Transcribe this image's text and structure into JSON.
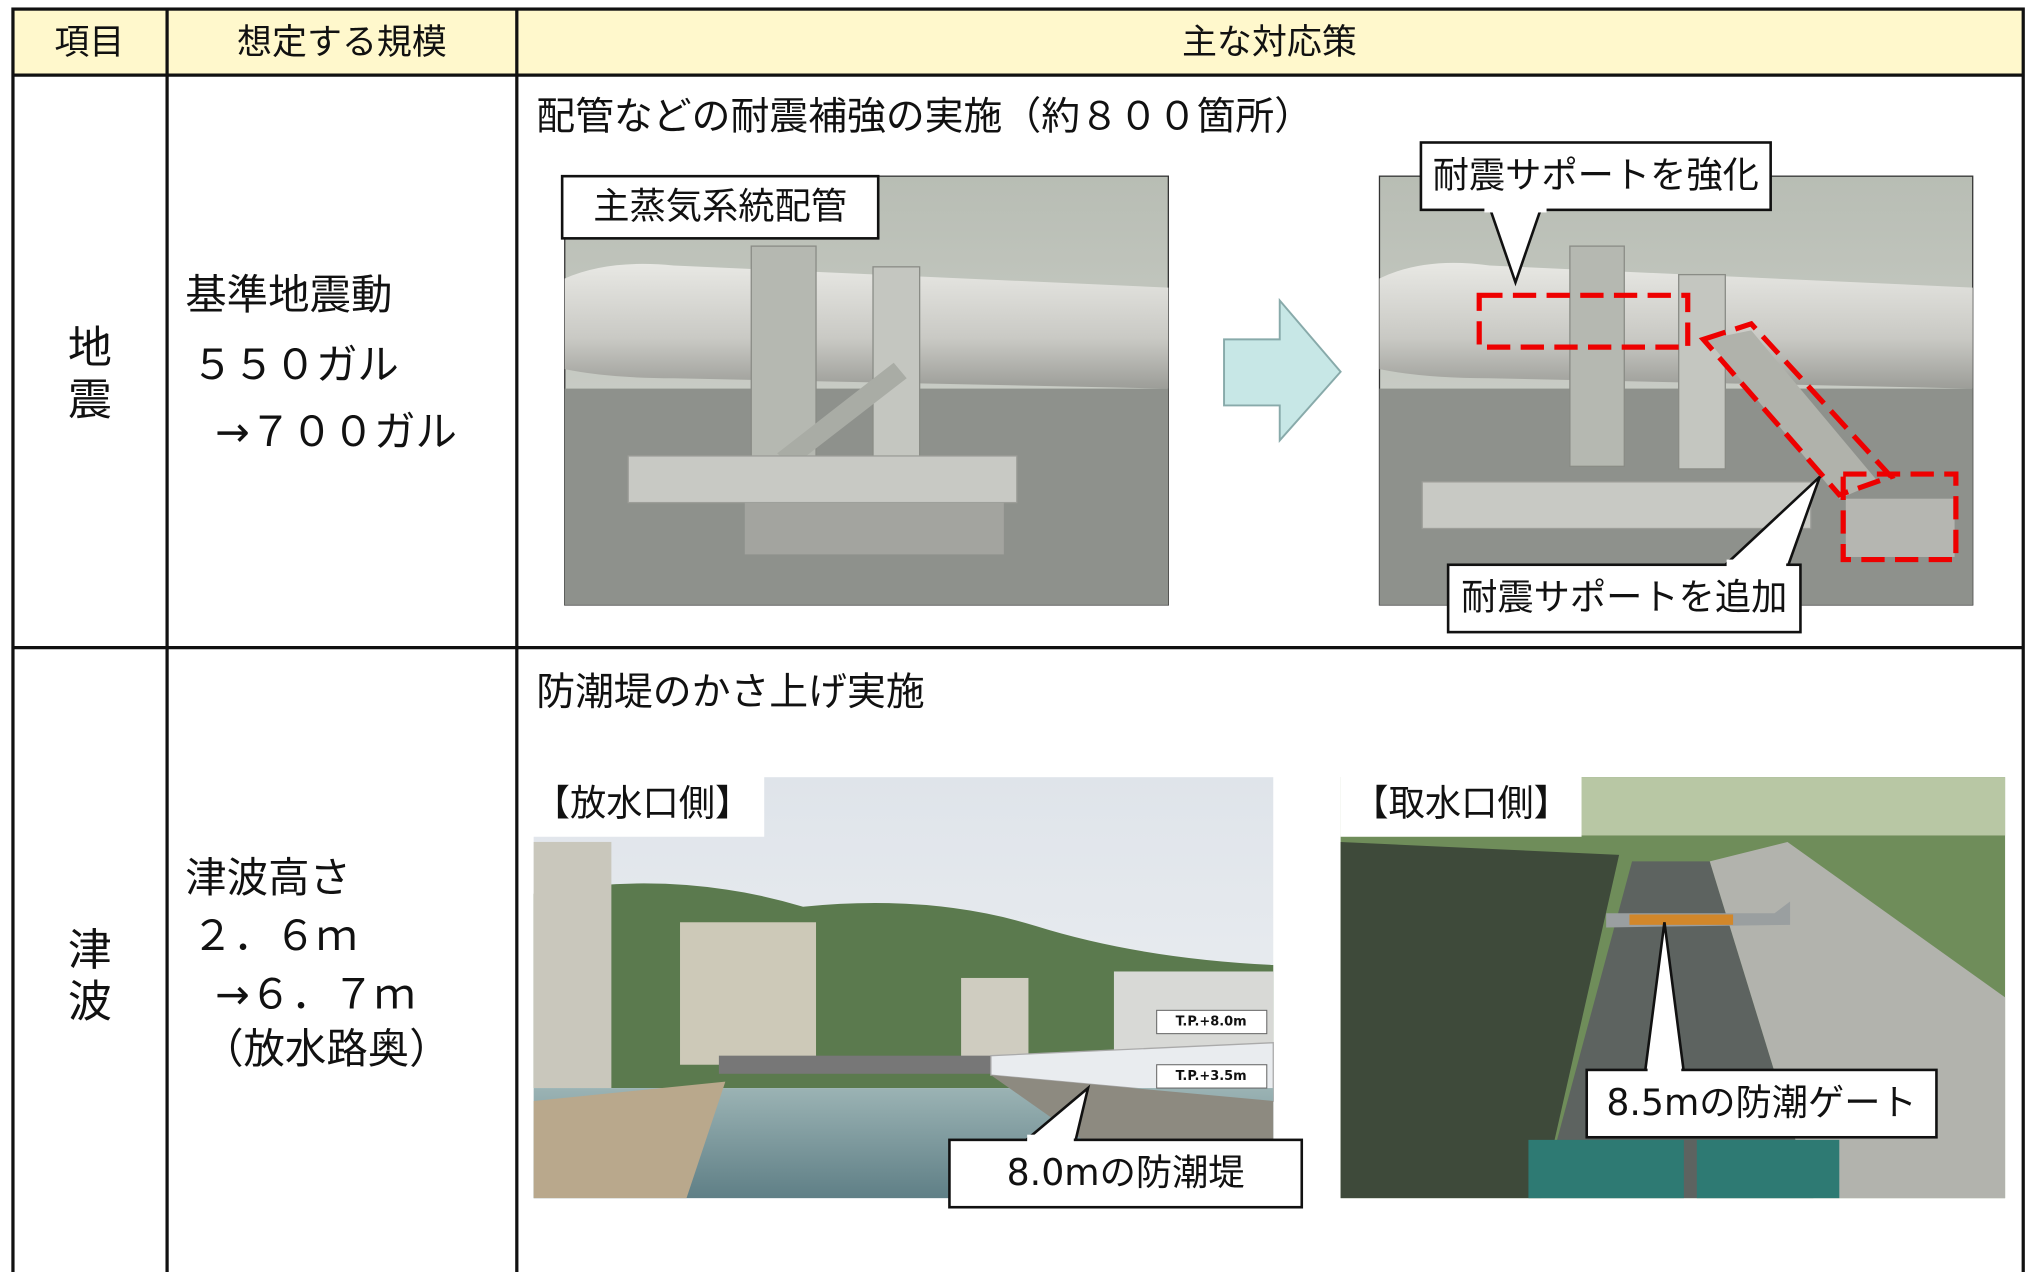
{
  "table": {
    "headers": [
      "項目",
      "想定する規模",
      "主な対応策"
    ],
    "rows": [
      {
        "item": "地震",
        "scale": [
          "基準地震動",
          "５５０ガル",
          "→７００ガル"
        ],
        "measure": {
          "title": "配管などの耐震補強の実施（約８００箇所）",
          "photos": [
            {
              "label": "主蒸気系統配管"
            },
            {
              "callouts": [
                "耐震サポートを強化",
                "耐震サポートを追加"
              ]
            }
          ]
        }
      },
      {
        "item": "津波",
        "scale": [
          "津波高さ",
          "２．６ｍ",
          "→６．７ｍ",
          "（放水路奥）"
        ],
        "measure": {
          "title": "防潮堤のかさ上げ実施",
          "photos": [
            {
              "label": "【放水口側】",
              "signs": [
                "T.P.+8.0m",
                "T.P.+3.5m"
              ],
              "callouts": [
                "8.0mの防潮堤"
              ]
            },
            {
              "label": "【取水口側】",
              "callouts": [
                "8.5mの防潮ゲート"
              ]
            }
          ]
        }
      }
    ]
  }
}
